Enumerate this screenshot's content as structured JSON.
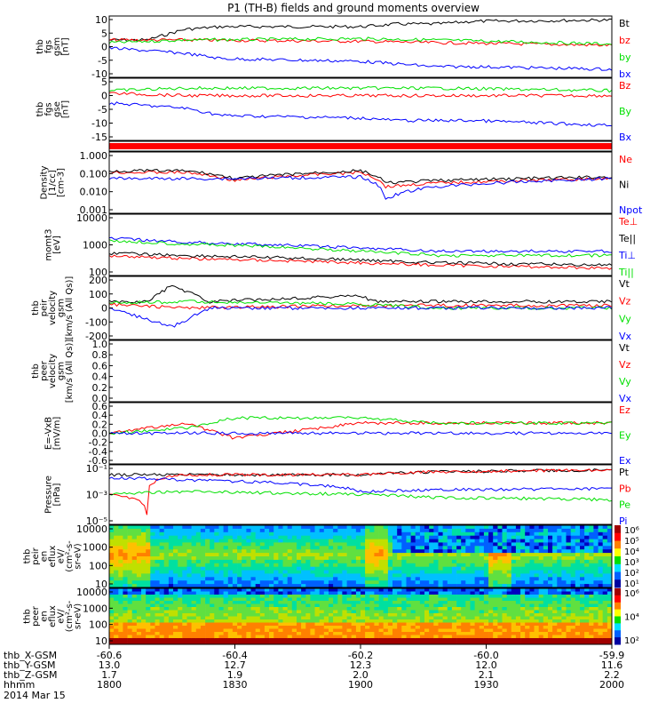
{
  "title": "P1 (TH-B) fields and ground moments overview",
  "colors": {
    "black": "#000000",
    "red": "#ff0000",
    "green": "#00e000",
    "blue": "#0000ff"
  },
  "panels": [
    {
      "id": "fgs-gsm",
      "ylabel": [
        "thb",
        "fgs",
        "gsm",
        "[nT]"
      ],
      "ticks": [
        "10",
        "5",
        "0",
        "-5",
        "-10"
      ],
      "legend": [
        {
          "label": "Bt",
          "color": "#000000"
        },
        {
          "label": "bz",
          "color": "#ff0000"
        },
        {
          "label": "by",
          "color": "#00e000"
        },
        {
          "label": "bx",
          "color": "#0000ff"
        }
      ]
    },
    {
      "id": "fgs-gse",
      "ylabel": [
        "thb",
        "fgs",
        "gse",
        "[nT]"
      ],
      "ticks": [
        "5",
        "0",
        "-5",
        "-10",
        "-15"
      ],
      "legend": [
        {
          "label": "Bz",
          "color": "#ff0000"
        },
        {
          "label": "By",
          "color": "#00e000"
        },
        {
          "label": "Bx",
          "color": "#0000ff"
        }
      ]
    },
    {
      "id": "bar",
      "ylabel": [],
      "ticks": [],
      "legend": []
    },
    {
      "id": "density",
      "ylabel": [
        "Density",
        "[1/cc]",
        "[cm-3]"
      ],
      "ticks": [
        "1.000",
        "0.100",
        "0.010",
        "0.001"
      ],
      "legend": [
        {
          "label": "Ne",
          "color": "#ff0000"
        },
        {
          "label": "Ni",
          "color": "#000000"
        },
        {
          "label": "Npot",
          "color": "#0000ff"
        }
      ]
    },
    {
      "id": "temp",
      "ylabel": [
        "momt3",
        "[eV]"
      ],
      "ticks": [
        "10000",
        "1000",
        "100"
      ],
      "legend": [
        {
          "label": "Te⊥",
          "color": "#ff0000"
        },
        {
          "label": "Te||",
          "color": "#000000"
        },
        {
          "label": "Ti⊥",
          "color": "#0000ff"
        },
        {
          "label": "Ti||",
          "color": "#00e000"
        }
      ]
    },
    {
      "id": "peir-vel",
      "ylabel": [
        "thb",
        "peir",
        "velocity",
        "gsm",
        "[km/s (All Qs)]"
      ],
      "ticks": [
        "200",
        "100",
        "0",
        "-100",
        "-200"
      ],
      "legend": [
        {
          "label": "Vt",
          "color": "#000000"
        },
        {
          "label": "Vz",
          "color": "#ff0000"
        },
        {
          "label": "Vy",
          "color": "#00e000"
        },
        {
          "label": "Vx",
          "color": "#0000ff"
        }
      ]
    },
    {
      "id": "peer-vel",
      "ylabel": [
        "thb",
        "peer",
        "velocity",
        "gsm",
        "[km/s (All Qs)]"
      ],
      "ticks": [
        "1.0",
        "0.8",
        "0.6",
        "0.4",
        "0.2",
        "0.0"
      ],
      "legend": [
        {
          "label": "Vt",
          "color": "#000000"
        },
        {
          "label": "Vz",
          "color": "#ff0000"
        },
        {
          "label": "Vy",
          "color": "#00e000"
        },
        {
          "label": "Vx",
          "color": "#0000ff"
        }
      ]
    },
    {
      "id": "efield",
      "ylabel": [
        "E=-VxB",
        "[mV/m]"
      ],
      "ticks": [
        "0.6",
        "0.4",
        "0.2",
        "0.0",
        "-0.2",
        "-0.4",
        "-0.6"
      ],
      "legend": [
        {
          "label": "Ez",
          "color": "#ff0000"
        },
        {
          "label": "Ey",
          "color": "#00e000"
        },
        {
          "label": "Ex",
          "color": "#0000ff"
        }
      ]
    },
    {
      "id": "pressure",
      "ylabel": [
        "Pressure",
        "[nPa]"
      ],
      "ticks": [
        "10⁻¹",
        "10⁻³",
        "10⁻⁵"
      ],
      "legend": [
        {
          "label": "Pt",
          "color": "#000000"
        },
        {
          "label": "Pb",
          "color": "#ff0000"
        },
        {
          "label": "Pe",
          "color": "#00e000"
        },
        {
          "label": "Pi",
          "color": "#0000ff"
        }
      ]
    },
    {
      "id": "peir-spec",
      "ylabel": [
        "thb",
        "peir",
        "en",
        "eflux",
        "eV/",
        "(cm²-s-",
        "sr-eV)"
      ],
      "ticks": [
        "10000",
        "1000",
        "100",
        "10"
      ],
      "colorbar": [
        "10⁶",
        "10⁵",
        "10⁴",
        "10³",
        "10²",
        "10¹"
      ],
      "legend": []
    },
    {
      "id": "peer-spec",
      "ylabel": [
        "thb",
        "peer",
        "en",
        "eflux",
        "eV/",
        "(cm²-s-",
        "sr-eV)"
      ],
      "ticks": [
        "10000",
        "1000",
        "100",
        "10"
      ],
      "colorbar": [
        "10⁶",
        "10⁴",
        "10²"
      ],
      "legend": []
    }
  ],
  "xaxis": {
    "rows": [
      {
        "label": "thb_X-GSM",
        "values": [
          "-60.6",
          "-60.4",
          "-60.2",
          "-60.0",
          "-59.9"
        ]
      },
      {
        "label": "thb_Y-GSM",
        "values": [
          "13.0",
          "12.7",
          "12.3",
          "12.0",
          "11.6"
        ]
      },
      {
        "label": "thb_Z-GSM",
        "values": [
          "1.7",
          "1.9",
          "2.0",
          "2.1",
          "2.2"
        ]
      },
      {
        "label": "hhmm",
        "values": [
          "1800",
          "1830",
          "1900",
          "1930",
          "2000"
        ]
      }
    ],
    "date": "2014 Mar 15"
  },
  "chart_data": {
    "type": "line",
    "title": "P1 (TH-B) fields and ground moments overview",
    "x": [
      "1800",
      "1830",
      "1900",
      "1930",
      "2000"
    ],
    "xlabel": "hhmm",
    "panels": [
      {
        "id": "fgs-gsm",
        "ylim": [
          -12,
          11
        ],
        "series": [
          {
            "name": "Bt",
            "color": "#000000",
            "x": [
              1800,
              1815,
              1830,
              1845,
              1900,
              1915,
              1930,
              1945,
              2000
            ],
            "y": [
              2,
              2,
              6,
              7,
              7,
              8,
              8,
              9,
              9.5
            ]
          },
          {
            "name": "bz",
            "color": "#ff0000",
            "x": [
              1800,
              1830,
              1900,
              1930,
              2000
            ],
            "y": [
              2,
              2,
              1.5,
              1,
              0
            ]
          },
          {
            "name": "by",
            "color": "#00e000",
            "x": [
              1800,
              1830,
              1900,
              1930,
              2000
            ],
            "y": [
              1,
              2,
              2.5,
              2,
              0.5
            ]
          },
          {
            "name": "bx",
            "color": "#0000ff",
            "x": [
              1800,
              1815,
              1830,
              1845,
              1900,
              1915,
              1930,
              1945,
              2000
            ],
            "y": [
              -1,
              -2,
              -3,
              -5,
              -6,
              -7,
              -8,
              -8,
              -9
            ]
          }
        ]
      },
      {
        "id": "fgs-gse",
        "ylim": [
          -18,
          7
        ],
        "series": [
          {
            "name": "Bz",
            "color": "#ff0000",
            "x": [
              1800,
              1830,
              1900,
              1930,
              2000
            ],
            "y": [
              1,
              0,
              0,
              0,
              0
            ]
          },
          {
            "name": "By",
            "color": "#00e000",
            "x": [
              1800,
              1830,
              1900,
              1930,
              2000
            ],
            "y": [
              2,
              3,
              3,
              3,
              2
            ]
          },
          {
            "name": "Bx",
            "color": "#0000ff",
            "x": [
              1800,
              1815,
              1830,
              1845,
              1900,
              1915,
              1930,
              1945,
              2000
            ],
            "y": [
              -3,
              -4,
              -5,
              -8,
              -9,
              -10,
              -10,
              -10,
              -12
            ]
          }
        ]
      },
      {
        "id": "density",
        "ylim": [
          0.001,
          1.0
        ],
        "log": true,
        "series": [
          {
            "name": "Ne",
            "color": "#ff0000",
            "x": [
              1800,
              1830,
              1850,
              1900,
              1910,
              1930,
              2000
            ],
            "y": [
              0.1,
              0.1,
              0.04,
              0.1,
              0.02,
              0.03,
              0.05
            ]
          },
          {
            "name": "Ni",
            "color": "#000000",
            "x": [
              1800,
              1830,
              1850,
              1900,
              1910,
              1930,
              2000
            ],
            "y": [
              0.12,
              0.12,
              0.05,
              0.12,
              0.03,
              0.04,
              0.06
            ]
          },
          {
            "name": "Npot",
            "color": "#0000ff",
            "x": [
              1800,
              1830,
              1850,
              1900,
              1910,
              1930,
              2000
            ],
            "y": [
              0.05,
              0.05,
              0.05,
              0.06,
              0.005,
              0.02,
              0.05
            ]
          }
        ]
      },
      {
        "id": "temp",
        "ylim": [
          30,
          10000
        ],
        "log": true,
        "series": [
          {
            "name": "Te⊥",
            "color": "#ff0000",
            "x": [
              1800,
              1830,
              1900,
              1930,
              2000
            ],
            "y": [
              200,
              150,
              100,
              80,
              60
            ]
          },
          {
            "name": "Te||",
            "color": "#000000",
            "x": [
              1800,
              1830,
              1900,
              1930,
              2000
            ],
            "y": [
              250,
              200,
              130,
              100,
              80
            ]
          },
          {
            "name": "Ti⊥",
            "color": "#0000ff",
            "x": [
              1800,
              1830,
              1900,
              1930,
              2000
            ],
            "y": [
              1000,
              700,
              400,
              300,
              300
            ]
          },
          {
            "name": "Ti||",
            "color": "#00e000",
            "x": [
              1800,
              1830,
              1900,
              1930,
              2000
            ],
            "y": [
              800,
              600,
              300,
              200,
              200
            ]
          }
        ]
      },
      {
        "id": "peir-vel",
        "ylim": [
          -250,
          250
        ],
        "series": [
          {
            "name": "Vt",
            "color": "#000000",
            "x": [
              1800,
              1815,
              1825,
              1840,
              1900,
              1905,
              1930,
              2000
            ],
            "y": [
              50,
              50,
              180,
              50,
              100,
              50,
              50,
              50
            ]
          },
          {
            "name": "Vz",
            "color": "#ff0000",
            "x": [
              1800,
              1830,
              1900,
              1930,
              2000
            ],
            "y": [
              30,
              0,
              20,
              20,
              20
            ]
          },
          {
            "name": "Vy",
            "color": "#00e000",
            "x": [
              1800,
              1830,
              1900,
              1930,
              2000
            ],
            "y": [
              40,
              50,
              30,
              0,
              0
            ]
          },
          {
            "name": "Vx",
            "color": "#0000ff",
            "x": [
              1800,
              1825,
              1840,
              1900,
              1930,
              2000
            ],
            "y": [
              0,
              -150,
              0,
              0,
              0,
              0
            ]
          }
        ]
      },
      {
        "id": "peer-vel",
        "ylim": [
          0,
          1
        ],
        "series": []
      },
      {
        "id": "efield",
        "ylim": [
          -0.6,
          0.6
        ],
        "series": [
          {
            "name": "Ez",
            "color": "#ff0000",
            "x": [
              1800,
              1830,
              1850,
              1900,
              1930,
              2000
            ],
            "y": [
              0,
              0.2,
              -0.1,
              0.2,
              0.2,
              0.2
            ]
          },
          {
            "name": "Ey",
            "color": "#00e000",
            "x": [
              1800,
              1830,
              1850,
              1900,
              1930,
              2000
            ],
            "y": [
              0,
              0.1,
              0.3,
              0.3,
              0.2,
              0.2
            ]
          },
          {
            "name": "Ex",
            "color": "#0000ff",
            "x": [
              1800,
              1830,
              1900,
              1930,
              2000
            ],
            "y": [
              0,
              0,
              0,
              0,
              0
            ]
          }
        ]
      },
      {
        "id": "pressure",
        "ylim": [
          1e-06,
          1
        ],
        "log": true,
        "series": [
          {
            "name": "Pt",
            "color": "#000000",
            "x": [
              1800,
              1830,
              1900,
              1930,
              2000
            ],
            "y": [
              0.1,
              0.1,
              0.1,
              0.2,
              0.3
            ]
          },
          {
            "name": "Pb",
            "color": "#ff0000",
            "x": [
              1800,
              1815,
              1830,
              1900,
              1930,
              2000
            ],
            "y": [
              0.001,
              1e-05,
              0.1,
              0.1,
              0.2,
              0.3
            ]
          },
          {
            "name": "Pe",
            "color": "#00e000",
            "x": [
              1800,
              1830,
              1900,
              1930,
              2000
            ],
            "y": [
              0.001,
              0.002,
              0.001,
              0.0005,
              0.0003
            ]
          },
          {
            "name": "Pi",
            "color": "#0000ff",
            "x": [
              1800,
              1830,
              1900,
              1930,
              2000
            ],
            "y": [
              0.05,
              0.03,
              0.002,
              0.003,
              0.004
            ]
          }
        ]
      },
      {
        "id": "peir-spec",
        "type": "heatmap",
        "ylim": [
          5,
          20000
        ],
        "log": true
      },
      {
        "id": "peer-spec",
        "type": "heatmap",
        "ylim": [
          5,
          20000
        ],
        "log": true
      }
    ]
  }
}
